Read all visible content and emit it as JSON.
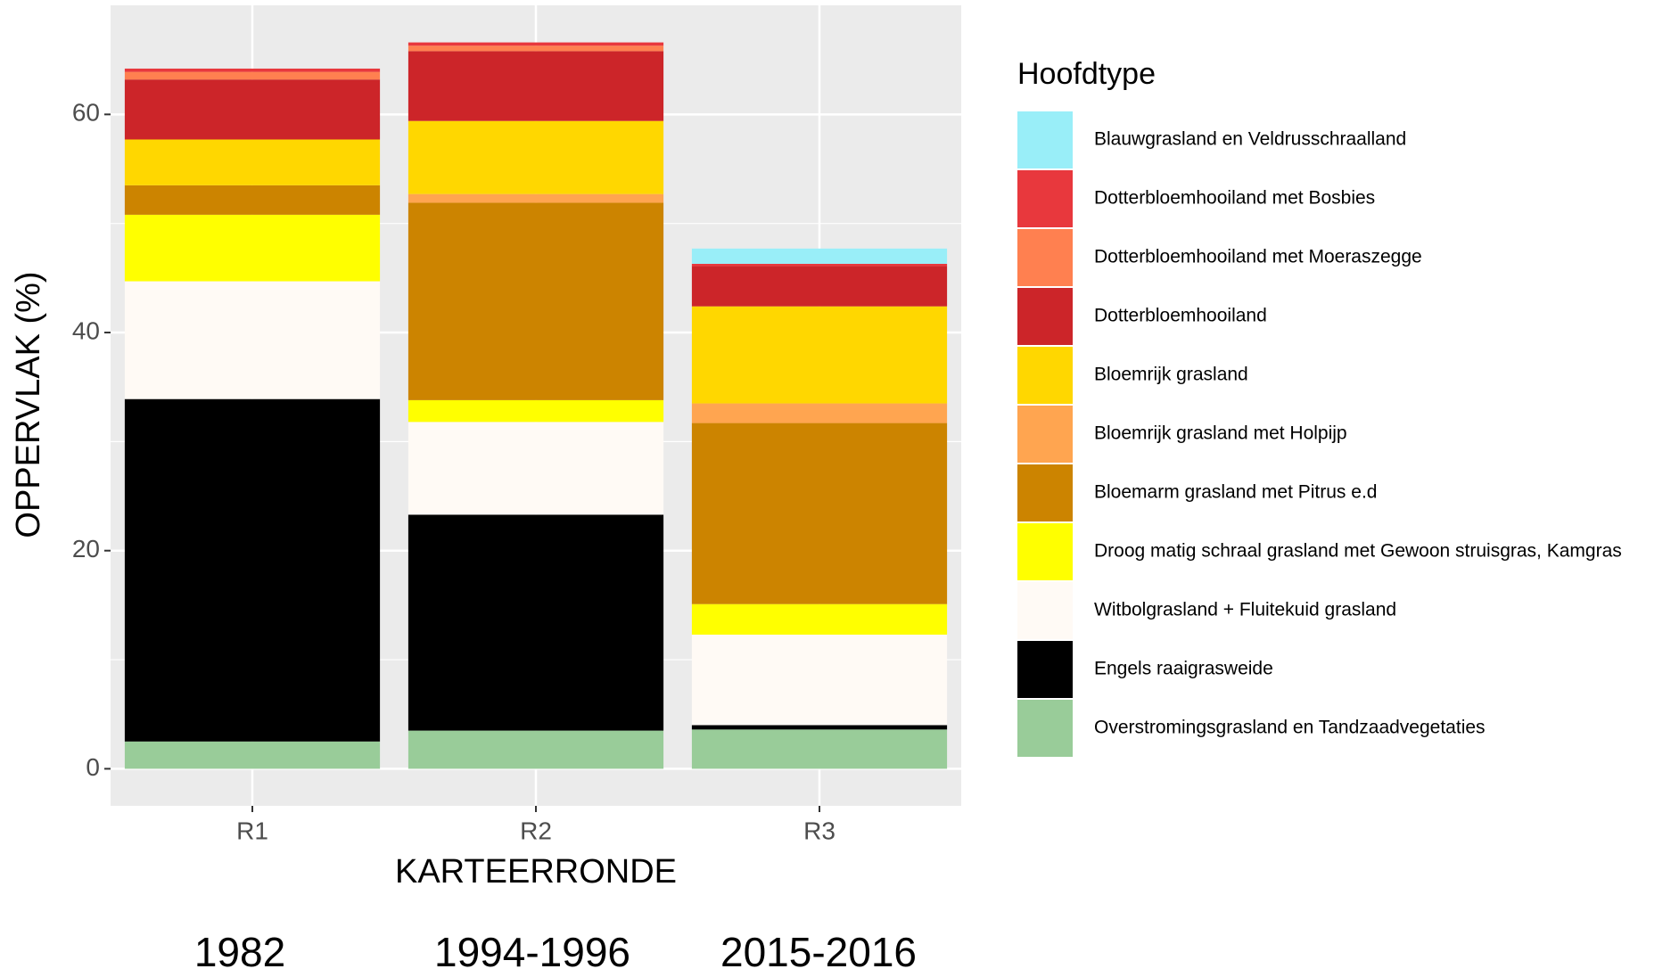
{
  "chart_data": {
    "type": "stacked_bar",
    "x_label": "KARTEERRONDE",
    "y_label": "OPPERVLAK (%)",
    "legend_title": "Hoofdtype",
    "legend_position": "right",
    "categories": [
      "R1",
      "R2",
      "R3"
    ],
    "annotations": [
      "1982",
      "1994-1996",
      "2015-2016"
    ],
    "ylim": [
      -3.4,
      70
    ],
    "yticks": [
      0,
      20,
      40,
      60
    ],
    "minor_yticks": [
      10,
      30,
      50
    ],
    "grid": true,
    "series": [
      {
        "name": "Blauwgrasland en Veldrusschraalland",
        "color": "#99eef8",
        "values": [
          0,
          0,
          1.4
        ]
      },
      {
        "name": "Dotterbloemhooiland met Bosbies",
        "color": "#e8383d",
        "values": [
          0.3,
          0.3,
          0.2
        ]
      },
      {
        "name": "Dotterbloemhooiland met Moeraszegge",
        "color": "#ff8050",
        "values": [
          0.7,
          0.5,
          0
        ]
      },
      {
        "name": "Dotterbloemhooiland",
        "color": "#cc2529",
        "values": [
          5.5,
          6.4,
          3.7
        ]
      },
      {
        "name": "Bloemrijk grasland",
        "color": "#ffd700",
        "values": [
          4.2,
          6.7,
          8.9
        ]
      },
      {
        "name": "Bloemrijk grasland met Holpijp",
        "color": "#ffa550",
        "values": [
          0,
          0.8,
          1.8
        ]
      },
      {
        "name": "Bloemarm grasland met Pitrus e.d",
        "color": "#cc8400",
        "values": [
          2.7,
          18.1,
          16.6
        ]
      },
      {
        "name": "Droog matig schraal grasland met Gewoon struisgras, Kamgras",
        "color": "#ffff00",
        "values": [
          6.1,
          2.0,
          2.8
        ]
      },
      {
        "name": "Witbolgrasland + Fluitekuid grasland",
        "color": "#fffaf5",
        "values": [
          10.8,
          8.5,
          8.3
        ]
      },
      {
        "name": "Engels raaigrasweide",
        "color": "#000000",
        "values": [
          31.4,
          19.8,
          0.4
        ]
      },
      {
        "name": "Overstromingsgrasland en Tandzaadvegetaties",
        "color": "#99cc99",
        "values": [
          2.5,
          3.5,
          3.6
        ]
      }
    ]
  }
}
